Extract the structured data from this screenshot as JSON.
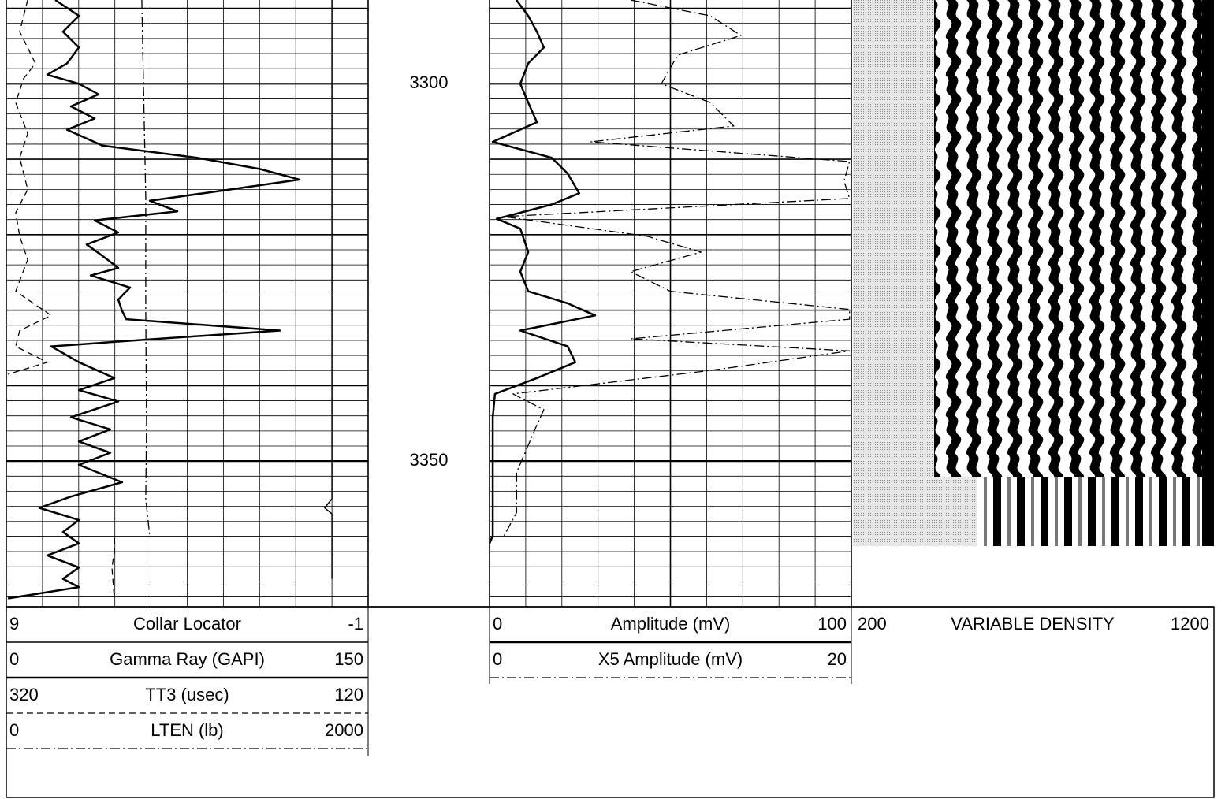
{
  "chart_data": {
    "type": "well-log",
    "ylim": [
      3288.9,
      3369.3
    ],
    "yticks": [
      3300,
      3350
    ],
    "grid_major": [
      3290,
      3310,
      3320,
      3330,
      3340,
      3360
    ],
    "grid_minor": [
      3292,
      3294,
      3296,
      3298,
      3302,
      3304,
      3306,
      3308,
      3312,
      3314,
      3316,
      3318,
      3322,
      3324,
      3326,
      3328,
      3332,
      3334,
      3336,
      3338,
      3342,
      3344,
      3346,
      3348,
      3352,
      3354,
      3356,
      3358,
      3362,
      3364,
      3366,
      3368
    ],
    "tracks": [
      {
        "curves": [
          {
            "name": "Collar Locator",
            "scale": [
              9,
              -1
            ],
            "style": "solid",
            "width": 1.5,
            "color": "#000000",
            "depth": [
              3288.9,
              3355.0,
              3356.2,
              3357.0,
              3365.6
            ],
            "values": [
              0,
              0,
              0.2,
              0,
              0
            ]
          },
          {
            "name": "Gamma Ray (GAPI)",
            "scale": [
              0,
              150
            ],
            "style": "solid",
            "width": 2.5,
            "color": "#000000",
            "depth": [
              3288.9,
              3291.0,
              3293.1,
              3295.2,
              3297.3,
              3298.8,
              3300.0,
              3301.4,
              3303.0,
              3304.6,
              3306.1,
              3308.2,
              3309.8,
              3311.3,
              3312.7,
              3313.9,
              3315.5,
              3316.9,
              3318.1,
              3319.7,
              3321.3,
              3322.8,
              3324.4,
              3325.4,
              3327.0,
              3328.6,
              3330.1,
              3331.2,
              3332.7,
              3333.8,
              3334.8,
              3336.9,
              3339.0,
              3340.6,
              3342.1,
              3344.2,
              3345.8,
              3347.4,
              3348.9,
              3350.5,
              3352.8,
              3354.7,
              3356.2,
              3357.8,
              3359.4,
              3360.9,
              3362.5,
              3364.1,
              3365.6,
              3366.7,
              3368.2
            ],
            "values": [
              20.3,
              30.1,
              23.5,
              30.1,
              25.2,
              17.0,
              30.1,
              38.2,
              26.8,
              36.6,
              25.2,
              39.9,
              79.1,
              105.2,
              121.6,
              95.4,
              59.5,
              70.9,
              36.6,
              46.4,
              33.3,
              39.9,
              46.4,
              35.0,
              51.3,
              46.4,
              48.0,
              49.7,
              113.4,
              62.7,
              18.6,
              30.1,
              44.8,
              30.1,
              46.4,
              26.8,
              43.1,
              30.1,
              43.1,
              30.1,
              48.0,
              26.8,
              13.7,
              30.1,
              23.5,
              30.1,
              17.0,
              30.1,
              23.5,
              30.1,
              0.7
            ]
          },
          {
            "name": "TT3 (usec)",
            "scale": [
              320,
              120
            ],
            "style": "dashed",
            "width": 1.3,
            "color": "#000000",
            "depth": [
              3288.9,
              3293.1,
              3297.3,
              3299.3,
              3302.5,
              3306.6,
              3309.8,
              3314.0,
              3317.1,
              3320.2,
              3323.3,
              3327.5,
              3330.7,
              3332.7,
              3334.8,
              3336.9,
              3338.5,
              3350.0,
              3360.2,
              3362.0,
              3364.1,
              3368.2
            ],
            "values": [
              308.2,
              312.6,
              303.9,
              310.4,
              314.8,
              308.2,
              312.6,
              308.2,
              314.8,
              312.6,
              308.2,
              314.8,
              295.2,
              312.6,
              314.8,
              297.3,
              319.1,
              null,
              260.3,
              260.3,
              261.6,
              260.3
            ]
          },
          {
            "name": "LTEN (lb)",
            "scale": [
              0,
              2000
            ],
            "style": "dashdot",
            "width": 1.3,
            "color": "#000000",
            "depth": [
              3288.9,
              3300.0,
              3315.0,
              3330.0,
              3345.0,
              3355.0,
              3360.0
            ],
            "values": [
              749,
              758,
              771,
              771,
              775,
              771,
              793
            ]
          }
        ]
      },
      {
        "curves": [
          {
            "name": "Amplitude (mV)",
            "scale": [
              0,
              100
            ],
            "style": "solid",
            "width": 2.5,
            "color": "#000000",
            "depth": [
              3288.9,
              3291.0,
              3293.1,
              3295.2,
              3297.3,
              3300.0,
              3302.5,
              3305.1,
              3307.7,
              3309.8,
              3311.9,
              3314.5,
              3316.0,
              3317.9,
              3319.2,
              3322.3,
              3324.9,
              3327.5,
              3329.1,
              3330.7,
              3332.7,
              3334.8,
              3336.9,
              3339.0,
              3341.1,
              3344.2,
              3351.5,
              3359.9,
              3360.9
            ],
            "values": [
              7.4,
              10.7,
              13.1,
              15.0,
              10.7,
              8.5,
              10.7,
              13.1,
              0.9,
              17.2,
              21.6,
              24.8,
              17.2,
              2.0,
              8.5,
              10.7,
              8.5,
              10.7,
              21.6,
              29.2,
              8.5,
              21.6,
              23.7,
              13.1,
              1.5,
              0.9,
              0.9,
              0.9,
              0
            ]
          },
          {
            "name": "X5 Amplitude (mV)",
            "scale": [
              0,
              20
            ],
            "style": "dashdot",
            "width": 1.3,
            "color": "#000000",
            "depth": [
              3288.9,
              3291.0,
              3293.6,
              3296.2,
              3300.0,
              3302.5,
              3305.6,
              3307.7,
              3310.3,
              3312.9,
              3315.2,
              3317.6,
              3320.2,
              3322.3,
              3324.9,
              3327.5,
              3329.9,
              3331.2,
              3333.8,
              3335.4,
              3338.0,
              3341.1,
              3343.2,
              3345.3,
              3351.5,
              3356.8,
              3359.9
            ],
            "values": [
              7.8,
              12.2,
              13.9,
              10.4,
              9.5,
              12.2,
              13.5,
              5.6,
              19.9,
              19.6,
              19.9,
              0.8,
              8.7,
              11.7,
              7.8,
              10.0,
              19.9,
              19.9,
              7.8,
              19.9,
              12.2,
              1.3,
              3.0,
              2.6,
              1.5,
              1.5,
              0.8
            ]
          }
        ]
      }
    ],
    "vdl": {
      "name": "VARIABLE DENSITY",
      "scale": [
        200,
        1200
      ]
    }
  }
}
